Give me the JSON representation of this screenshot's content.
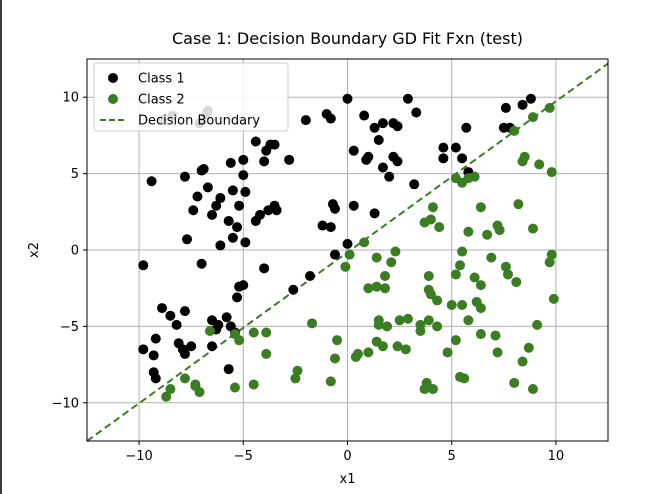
{
  "chart_data": {
    "type": "scatter",
    "title": "Case 1: Decision Boundary GD Fit Fxn (test)",
    "xlabel": "x1",
    "ylabel": "x2",
    "xlim": [
      -12.5,
      12.5
    ],
    "ylim": [
      -12.5,
      12.5
    ],
    "xticks": [
      -10,
      -5,
      0,
      5,
      10
    ],
    "yticks": [
      -10,
      -5,
      0,
      5,
      10
    ],
    "xtick_labels": [
      "−10",
      "−5",
      "0",
      "5",
      "10"
    ],
    "ytick_labels": [
      "−10",
      "−5",
      "0",
      "5",
      "10"
    ],
    "grid": true,
    "legend_position": "top-left",
    "series": [
      {
        "name": "Class 1",
        "kind": "scatter",
        "color": "#000000",
        "points": [
          [
            -8.9,
            8.5
          ],
          [
            -8.4,
            8.8
          ],
          [
            -7.1,
            8.3
          ],
          [
            -6.8,
            8.8
          ],
          [
            -6.7,
            9.1
          ],
          [
            -9.4,
            4.5
          ],
          [
            -7.8,
            4.8
          ],
          [
            -7.0,
            5.2
          ],
          [
            -6.9,
            5.3
          ],
          [
            -6.7,
            4.1
          ],
          [
            -6.1,
            3.4
          ],
          [
            -7.4,
            2.6
          ],
          [
            -7.2,
            3.5
          ],
          [
            -6.3,
            2.9
          ],
          [
            -6.5,
            2.3
          ],
          [
            -5.7,
            1.9
          ],
          [
            -5.5,
            3.9
          ],
          [
            -5.6,
            5.7
          ],
          [
            -5.0,
            5.9
          ],
          [
            -5.0,
            4.9
          ],
          [
            -4.9,
            3.8
          ],
          [
            -5.2,
            2.9
          ],
          [
            -5.3,
            1.5
          ],
          [
            -4.9,
            0.5
          ],
          [
            -5.5,
            0.8
          ],
          [
            -6.1,
            0.3
          ],
          [
            -7.7,
            0.7
          ],
          [
            -7.0,
            -0.9
          ],
          [
            -9.8,
            -1.0
          ],
          [
            -5.0,
            -2.3
          ],
          [
            -5.2,
            -2.4
          ],
          [
            -5.3,
            -3.1
          ],
          [
            -4.0,
            -1.2
          ],
          [
            -4.4,
            7.1
          ],
          [
            -3.9,
            6.5
          ],
          [
            -3.7,
            6.9
          ],
          [
            -3.5,
            6.9
          ],
          [
            -4.0,
            5.8
          ],
          [
            -4.2,
            2.3
          ],
          [
            -3.8,
            2.6
          ],
          [
            -3.5,
            2.9
          ],
          [
            -3.4,
            2.6
          ],
          [
            -2.8,
            5.9
          ],
          [
            -4.4,
            1.9
          ],
          [
            -2.0,
            8.5
          ],
          [
            -1.0,
            8.9
          ],
          [
            -0.8,
            8.6
          ],
          [
            0.0,
            9.9
          ],
          [
            0.8,
            8.8
          ],
          [
            1.3,
            8.0
          ],
          [
            1.7,
            8.3
          ],
          [
            2.2,
            8.3
          ],
          [
            2.4,
            8.1
          ],
          [
            1.5,
            7.2
          ],
          [
            2.9,
            9.9
          ],
          [
            3.3,
            9.0
          ],
          [
            4.6,
            6.7
          ],
          [
            4.6,
            6.0
          ],
          [
            5.2,
            6.7
          ],
          [
            5.5,
            6.0
          ],
          [
            5.7,
            8.0
          ],
          [
            5.8,
            5.1
          ],
          [
            7.5,
            8.0
          ],
          [
            7.8,
            8.0
          ],
          [
            7.6,
            9.3
          ],
          [
            8.4,
            9.5
          ],
          [
            8.8,
            9.9
          ],
          [
            0.3,
            6.5
          ],
          [
            0.9,
            5.9
          ],
          [
            1.0,
            6.1
          ],
          [
            1.7,
            5.4
          ],
          [
            2.0,
            4.8
          ],
          [
            2.2,
            6.1
          ],
          [
            2.4,
            5.8
          ],
          [
            3.2,
            4.3
          ],
          [
            -0.7,
            3.0
          ],
          [
            -0.6,
            2.7
          ],
          [
            0.3,
            2.9
          ],
          [
            1.3,
            2.4
          ],
          [
            -1.2,
            1.6
          ],
          [
            -0.8,
            1.5
          ],
          [
            -0.6,
            -0.3
          ],
          [
            0.0,
            0.4
          ],
          [
            -1.8,
            -1.7
          ],
          [
            -2.6,
            -2.6
          ],
          [
            -8.9,
            -3.8
          ],
          [
            -8.5,
            -4.3
          ],
          [
            -8.2,
            -4.9
          ],
          [
            -7.8,
            -4.0
          ],
          [
            -9.2,
            -5.8
          ],
          [
            -9.8,
            -6.5
          ],
          [
            -9.3,
            -6.9
          ],
          [
            -9.3,
            -8.0
          ],
          [
            -9.2,
            -8.4
          ],
          [
            -8.1,
            -6.1
          ],
          [
            -7.9,
            -6.5
          ],
          [
            -7.8,
            -6.8
          ],
          [
            -7.5,
            -6.3
          ],
          [
            -6.5,
            -4.6
          ],
          [
            -6.3,
            -5.2
          ],
          [
            -6.5,
            -6.3
          ],
          [
            -6.2,
            -4.9
          ],
          [
            -5.8,
            -4.4
          ],
          [
            -5.6,
            -5.0
          ],
          [
            -5.4,
            -5.4
          ],
          [
            -5.7,
            -7.8
          ]
        ]
      },
      {
        "name": "Class 2",
        "kind": "scatter",
        "color": "#3a7d22",
        "points": [
          [
            9.7,
            9.3
          ],
          [
            8.9,
            8.7
          ],
          [
            9.2,
            5.6
          ],
          [
            9.8,
            5.1
          ],
          [
            8.0,
            7.8
          ],
          [
            8.4,
            5.8
          ],
          [
            8.5,
            6.1
          ],
          [
            8.2,
            3.0
          ],
          [
            8.9,
            1.4
          ],
          [
            9.8,
            -0.3
          ],
          [
            9.7,
            -0.8
          ],
          [
            9.9,
            -3.2
          ],
          [
            9.1,
            -4.9
          ],
          [
            8.7,
            -6.4
          ],
          [
            8.4,
            -7.3
          ],
          [
            8.9,
            -9.1
          ],
          [
            8.0,
            -8.7
          ],
          [
            7.6,
            -1.1
          ],
          [
            7.7,
            -1.6
          ],
          [
            8.1,
            -2.1
          ],
          [
            7.2,
            1.6
          ],
          [
            7.3,
            1.3
          ],
          [
            6.9,
            -0.5
          ],
          [
            6.7,
            1.0
          ],
          [
            6.4,
            2.8
          ],
          [
            6.4,
            -2.3
          ],
          [
            6.1,
            -1.8
          ],
          [
            6.2,
            -3.4
          ],
          [
            6.4,
            -3.8
          ],
          [
            6.4,
            -5.5
          ],
          [
            7.1,
            -5.6
          ],
          [
            7.2,
            -6.7
          ],
          [
            5.8,
            -4.6
          ],
          [
            5.8,
            1.2
          ],
          [
            5.5,
            -0.1
          ],
          [
            5.4,
            -1.0
          ],
          [
            5.2,
            -1.6
          ],
          [
            5.0,
            -3.6
          ],
          [
            5.5,
            -3.6
          ],
          [
            5.2,
            -5.9
          ],
          [
            4.8,
            -6.7
          ],
          [
            5.4,
            -8.3
          ],
          [
            5.6,
            -8.4
          ],
          [
            5.5,
            4.4
          ],
          [
            5.8,
            4.7
          ],
          [
            6.1,
            4.8
          ],
          [
            5.2,
            4.7
          ],
          [
            4.4,
            1.5
          ],
          [
            4.1,
            2.8
          ],
          [
            4.0,
            2.0
          ],
          [
            3.7,
            1.8
          ],
          [
            3.9,
            -1.7
          ],
          [
            3.9,
            -2.6
          ],
          [
            4.0,
            -2.9
          ],
          [
            4.3,
            -3.3
          ],
          [
            4.3,
            -5.0
          ],
          [
            3.9,
            -4.6
          ],
          [
            3.5,
            -4.9
          ],
          [
            3.5,
            -5.3
          ],
          [
            3.8,
            -8.7
          ],
          [
            4.1,
            -9.1
          ],
          [
            3.7,
            -9.1
          ],
          [
            2.9,
            -4.5
          ],
          [
            2.5,
            -4.6
          ],
          [
            2.4,
            -6.3
          ],
          [
            2.8,
            -6.5
          ],
          [
            2.3,
            -0.1
          ],
          [
            2.1,
            -0.8
          ],
          [
            1.4,
            -0.5
          ],
          [
            1.8,
            -1.7
          ],
          [
            1.8,
            -2.5
          ],
          [
            1.4,
            -2.4
          ],
          [
            1.5,
            -4.6
          ],
          [
            1.5,
            -4.9
          ],
          [
            1.9,
            -5.0
          ],
          [
            1.4,
            -6.0
          ],
          [
            1.7,
            -6.3
          ],
          [
            1.0,
            -2.5
          ],
          [
            1.0,
            -6.7
          ],
          [
            0.8,
            0.5
          ],
          [
            0.1,
            -0.3
          ],
          [
            -0.1,
            -1.1
          ],
          [
            0.5,
            -6.8
          ],
          [
            0.4,
            -7.0
          ],
          [
            -0.5,
            -5.9
          ],
          [
            -0.6,
            -7.1
          ],
          [
            -0.8,
            -8.6
          ],
          [
            -1.7,
            -4.8
          ],
          [
            -2.4,
            -7.9
          ],
          [
            -2.5,
            -8.4
          ],
          [
            -3.9,
            -5.4
          ],
          [
            -3.9,
            -6.8
          ],
          [
            -4.5,
            -5.4
          ],
          [
            -4.5,
            -8.8
          ],
          [
            -5.2,
            -5.9
          ],
          [
            -5.4,
            -5.5
          ],
          [
            -5.4,
            -9.0
          ],
          [
            -6.6,
            -5.3
          ],
          [
            -7.3,
            -8.9
          ],
          [
            -7.3,
            -8.8
          ],
          [
            -7.1,
            -9.3
          ],
          [
            -7.8,
            -8.4
          ],
          [
            -8.5,
            -9.1
          ],
          [
            -8.7,
            -9.6
          ]
        ]
      },
      {
        "name": "Decision Boundary",
        "kind": "line",
        "style": "dashed",
        "color": "#3a7d22",
        "points": [
          [
            -12.5,
            -12.5
          ],
          [
            12.5,
            12.2
          ]
        ]
      }
    ]
  }
}
